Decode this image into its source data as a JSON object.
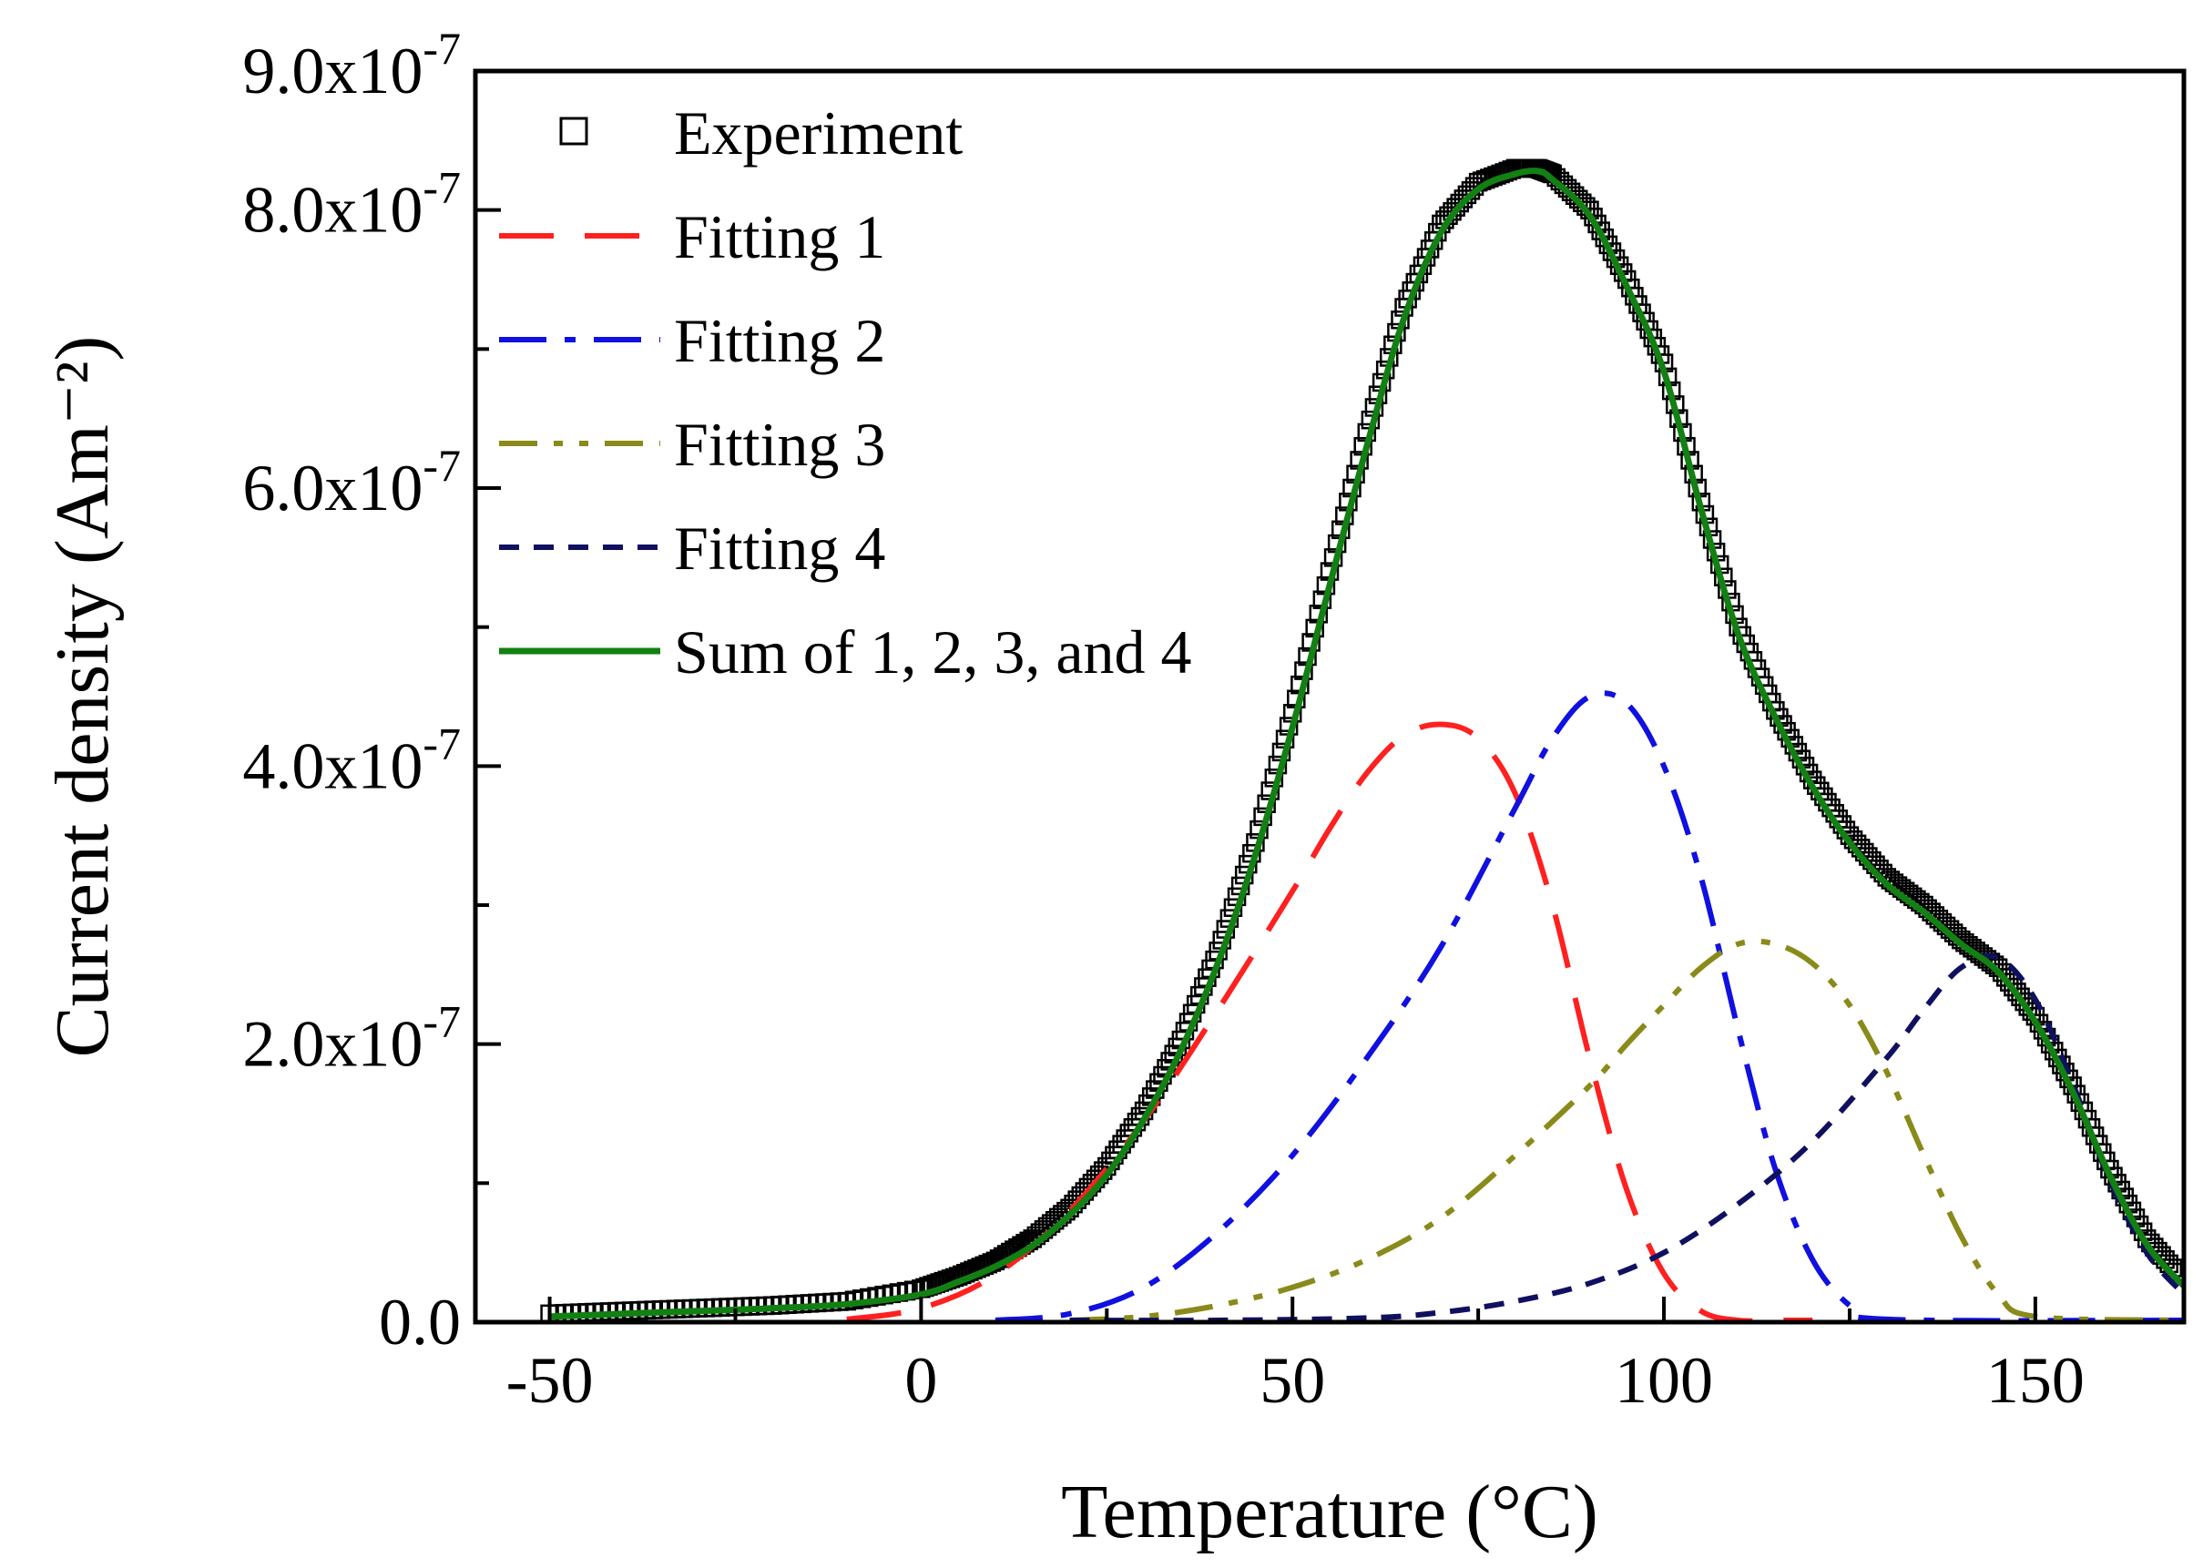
{
  "chart_data": {
    "type": "line",
    "title": "",
    "xlabel": "Temperature (°C)",
    "ylabel": "Current density (Am⁻²)",
    "xlim": [
      -60,
      170
    ],
    "ylim": [
      0,
      9e-07
    ],
    "x_ticks": [
      -50,
      0,
      50,
      100,
      150
    ],
    "x_tick_labels": [
      "-50",
      "0",
      "50",
      "100",
      "150"
    ],
    "y_ticks": [
      0,
      2e-07,
      4e-07,
      6e-07,
      8e-07,
      9e-07
    ],
    "y_tick_labels": [
      {
        "mantissa": "0.0",
        "exponent": ""
      },
      {
        "mantissa": "2.0x10",
        "exponent": "-7"
      },
      {
        "mantissa": "4.0x10",
        "exponent": "-7"
      },
      {
        "mantissa": "6.0x10",
        "exponent": "-7"
      },
      {
        "mantissa": "8.0x10",
        "exponent": "-7"
      },
      {
        "mantissa": "9.0x10",
        "exponent": "-7"
      }
    ],
    "legend_position": "top-left",
    "series": [
      {
        "name": "Experiment",
        "style": "open-square-markers",
        "color": "#000000",
        "x": [
          -50,
          -40,
          -30,
          -20,
          -10,
          0,
          5,
          10,
          15,
          20,
          25,
          30,
          35,
          40,
          45,
          50,
          55,
          60,
          65,
          70,
          75,
          80,
          83,
          85,
          90,
          95,
          100,
          105,
          110,
          115,
          120,
          125,
          130,
          135,
          140,
          145,
          150,
          155,
          160,
          165,
          170
        ],
        "y": [
          0.006,
          0.008,
          0.01,
          0.012,
          0.015,
          0.024,
          0.033,
          0.044,
          0.06,
          0.082,
          0.112,
          0.152,
          0.203,
          0.267,
          0.345,
          0.438,
          0.54,
          0.64,
          0.73,
          0.79,
          0.82,
          0.83,
          0.83,
          0.826,
          0.8,
          0.75,
          0.69,
          0.59,
          0.5,
          0.44,
          0.39,
          0.35,
          0.32,
          0.3,
          0.275,
          0.255,
          0.22,
          0.17,
          0.11,
          0.06,
          0.03
        ]
      },
      {
        "name": "Fitting 1",
        "style": "dash",
        "color": "#ff2020",
        "x": [
          -10,
          0,
          10,
          20,
          30,
          40,
          50,
          55,
          60,
          65,
          70,
          75,
          80,
          85,
          90,
          95,
          100,
          105,
          110,
          115,
          120
        ],
        "y": [
          0.002,
          0.01,
          0.034,
          0.08,
          0.145,
          0.225,
          0.31,
          0.355,
          0.395,
          0.422,
          0.43,
          0.42,
          0.38,
          0.3,
          0.19,
          0.095,
          0.035,
          0.008,
          0.001,
          0.0,
          0.0
        ]
      },
      {
        "name": "Fitting 2",
        "style": "dash-dot",
        "color": "#1010e0",
        "x": [
          10,
          20,
          30,
          40,
          50,
          60,
          70,
          80,
          85,
          90,
          95,
          100,
          105,
          110,
          115,
          120,
          125,
          130,
          170
        ],
        "y": [
          0.001,
          0.006,
          0.025,
          0.065,
          0.12,
          0.19,
          0.27,
          0.37,
          0.42,
          0.45,
          0.445,
          0.4,
          0.32,
          0.21,
          0.11,
          0.045,
          0.012,
          0.002,
          0.0
        ]
      },
      {
        "name": "Fitting 3",
        "style": "dash-dot-dot",
        "color": "#8a8a1a",
        "x": [
          20,
          30,
          40,
          50,
          60,
          70,
          80,
          90,
          95,
          100,
          105,
          110,
          115,
          120,
          125,
          130,
          135,
          140,
          145,
          150,
          170
        ],
        "y": [
          0.001,
          0.004,
          0.012,
          0.025,
          0.045,
          0.075,
          0.12,
          0.17,
          0.2,
          0.228,
          0.255,
          0.272,
          0.272,
          0.258,
          0.228,
          0.18,
          0.12,
          0.062,
          0.02,
          0.004,
          0.0
        ]
      },
      {
        "name": "Fitting 4",
        "style": "short-dash",
        "color": "#101060",
        "x": [
          20,
          40,
          60,
          70,
          80,
          90,
          100,
          110,
          120,
          130,
          135,
          140,
          145,
          150,
          155,
          160,
          165,
          170
        ],
        "y": [
          0.0,
          0.001,
          0.003,
          0.007,
          0.015,
          0.028,
          0.05,
          0.085,
          0.13,
          0.19,
          0.225,
          0.255,
          0.262,
          0.232,
          0.172,
          0.102,
          0.05,
          0.02
        ]
      },
      {
        "name": "Sum of 1, 2, 3, and 4",
        "style": "solid",
        "color": "#128012",
        "x": [
          -50,
          -40,
          -30,
          -20,
          -10,
          0,
          5,
          10,
          15,
          20,
          25,
          30,
          35,
          40,
          45,
          50,
          55,
          60,
          65,
          70,
          75,
          80,
          83,
          85,
          90,
          95,
          100,
          105,
          110,
          115,
          120,
          125,
          130,
          135,
          140,
          145,
          150,
          155,
          160,
          165,
          170
        ],
        "y": [
          0.004,
          0.006,
          0.008,
          0.01,
          0.013,
          0.02,
          0.029,
          0.04,
          0.055,
          0.077,
          0.106,
          0.146,
          0.196,
          0.259,
          0.336,
          0.428,
          0.53,
          0.63,
          0.722,
          0.784,
          0.815,
          0.826,
          0.828,
          0.822,
          0.796,
          0.745,
          0.684,
          0.585,
          0.495,
          0.435,
          0.385,
          0.345,
          0.315,
          0.295,
          0.272,
          0.252,
          0.216,
          0.166,
          0.106,
          0.056,
          0.026
        ]
      }
    ]
  }
}
